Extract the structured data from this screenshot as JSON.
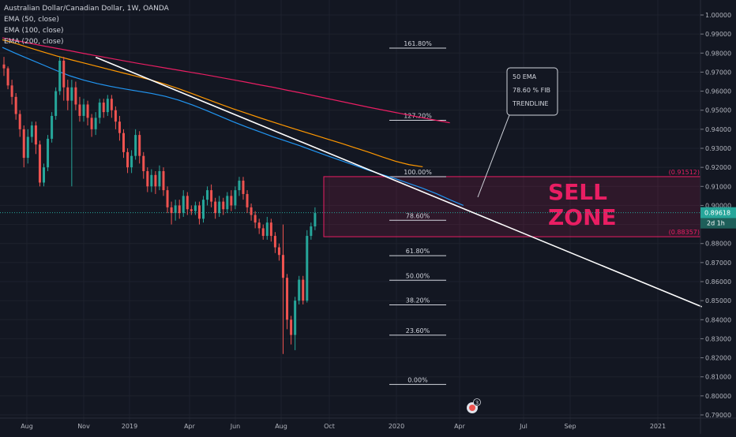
{
  "chart_data": {
    "type": "candlestick",
    "legend_lines": [
      "Australian Dollar/Canadian Dollar, 1W, OANDA",
      "EMA (50, close)",
      "EMA (100, close)",
      "EMA (200, close)"
    ],
    "y_ticks": [
      "1.00000",
      "0.99000",
      "0.98000",
      "0.97000",
      "0.96000",
      "0.95000",
      "0.94000",
      "0.93000",
      "0.92000",
      "0.91000",
      "0.90000",
      "0.89000",
      "0.88000",
      "0.87000",
      "0.86000",
      "0.85000",
      "0.84000",
      "0.83000",
      "0.82000",
      "0.81000",
      "0.80000",
      "0.79000"
    ],
    "ylim": [
      0.79,
      1.0
    ],
    "x_ticks": [
      "Aug",
      "Nov",
      "2019",
      "Apr",
      "Jun",
      "Aug",
      "Oct",
      "2020",
      "Apr",
      "Jul",
      "Sep",
      "2021"
    ],
    "price_label": "0.89618",
    "countdown_label": "2d 1h",
    "price_value": 0.89618,
    "fib_levels": [
      {
        "label": "161.80%",
        "value": 0.9826
      },
      {
        "label": "127.20%",
        "value": 0.9447
      },
      {
        "label": "100.00%",
        "value": 0.9151
      },
      {
        "label": "78.60%",
        "value": 0.8922
      },
      {
        "label": "61.80%",
        "value": 0.8736
      },
      {
        "label": "50.00%",
        "value": 0.8607
      },
      {
        "label": "38.20%",
        "value": 0.8478
      },
      {
        "label": "23.60%",
        "value": 0.8319
      },
      {
        "label": "0.00%",
        "value": 0.806
      }
    ],
    "zone": {
      "top": 0.91512,
      "bottom": 0.88357,
      "top_label": "(0.91512)",
      "bottom_label": "(0.88357)",
      "title_line1": "SELL",
      "title_line2": "ZONE"
    },
    "callout_lines": [
      "50 EMA",
      "78.60 % FIB",
      "TRENDLINE"
    ],
    "badge": "3",
    "trendline": {
      "x1": 23,
      "y1": 0.9778,
      "x2": 175,
      "y2": 0.8468
    },
    "ema_200": [
      0.988,
      0.9866,
      0.9852,
      0.9838,
      0.9825,
      0.9812,
      0.9798,
      0.9785,
      0.9772,
      0.9759,
      0.9746,
      0.9734,
      0.9722,
      0.971,
      0.9698,
      0.9686,
      0.9673,
      0.966,
      0.9647,
      0.9633,
      0.962,
      0.9605,
      0.9591,
      0.9576,
      0.9561,
      0.9546,
      0.9531,
      0.9516,
      0.9502,
      0.9488,
      0.9474,
      0.946,
      0.9447,
      0.9434
    ],
    "ema_100": [
      0.987,
      0.985,
      0.9828,
      0.9806,
      0.9785,
      0.9766,
      0.9748,
      0.973,
      0.9712,
      0.9694,
      0.9676,
      0.9658,
      0.9637,
      0.9613,
      0.9587,
      0.956,
      0.9534,
      0.9508,
      0.9484,
      0.946,
      0.9437,
      0.9414,
      0.9392,
      0.937,
      0.9348,
      0.9326,
      0.9303,
      0.928,
      0.9255,
      0.9232,
      0.9214,
      0.9203
    ],
    "ema_50": [
      0.983,
      0.9798,
      0.9768,
      0.9738,
      0.9708,
      0.968,
      0.9658,
      0.964,
      0.9625,
      0.9612,
      0.96,
      0.9588,
      0.9573,
      0.9553,
      0.9528,
      0.95,
      0.947,
      0.944,
      0.9412,
      0.9386,
      0.936,
      0.9336,
      0.9312,
      0.9286,
      0.926,
      0.9235,
      0.921,
      0.9185,
      0.9162,
      0.914,
      0.9115,
      0.909,
      0.9062,
      0.903,
      0.9
    ],
    "candles": [
      [
        0.974,
        0.972,
        0.978,
        0.968
      ],
      [
        0.972,
        0.963,
        0.973,
        0.961
      ],
      [
        0.963,
        0.957,
        0.966,
        0.953
      ],
      [
        0.957,
        0.948,
        0.959,
        0.945
      ],
      [
        0.948,
        0.94,
        0.95,
        0.936
      ],
      [
        0.94,
        0.925,
        0.942,
        0.92
      ],
      [
        0.925,
        0.936,
        0.94,
        0.922
      ],
      [
        0.936,
        0.942,
        0.944,
        0.933
      ],
      [
        0.942,
        0.932,
        0.944,
        0.927
      ],
      [
        0.932,
        0.912,
        0.934,
        0.91
      ],
      [
        0.912,
        0.92,
        0.922,
        0.91
      ],
      [
        0.92,
        0.935,
        0.937,
        0.918
      ],
      [
        0.935,
        0.947,
        0.949,
        0.933
      ],
      [
        0.947,
        0.96,
        0.962,
        0.945
      ],
      [
        0.96,
        0.976,
        0.978,
        0.958
      ],
      [
        0.976,
        0.962,
        0.978,
        0.955
      ],
      [
        0.962,
        0.955,
        0.966,
        0.95
      ],
      [
        0.955,
        0.962,
        0.966,
        0.91
      ],
      [
        0.962,
        0.953,
        0.965,
        0.95
      ],
      [
        0.953,
        0.947,
        0.957,
        0.944
      ],
      [
        0.947,
        0.953,
        0.956,
        0.944
      ],
      [
        0.953,
        0.946,
        0.955,
        0.942
      ],
      [
        0.946,
        0.94,
        0.948,
        0.936
      ],
      [
        0.94,
        0.946,
        0.949,
        0.937
      ],
      [
        0.946,
        0.954,
        0.956,
        0.943
      ],
      [
        0.954,
        0.949,
        0.956,
        0.946
      ],
      [
        0.949,
        0.956,
        0.958,
        0.947
      ],
      [
        0.956,
        0.95,
        0.958,
        0.946
      ],
      [
        0.95,
        0.944,
        0.952,
        0.94
      ],
      [
        0.944,
        0.938,
        0.947,
        0.934
      ],
      [
        0.938,
        0.928,
        0.94,
        0.925
      ],
      [
        0.928,
        0.92,
        0.93,
        0.917
      ],
      [
        0.92,
        0.926,
        0.929,
        0.917
      ],
      [
        0.926,
        0.937,
        0.94,
        0.924
      ],
      [
        0.937,
        0.926,
        0.939,
        0.922
      ],
      [
        0.926,
        0.918,
        0.928,
        0.914
      ],
      [
        0.918,
        0.91,
        0.92,
        0.907
      ],
      [
        0.91,
        0.916,
        0.919,
        0.907
      ],
      [
        0.916,
        0.91,
        0.918,
        0.906
      ],
      [
        0.91,
        0.918,
        0.921,
        0.908
      ],
      [
        0.918,
        0.908,
        0.92,
        0.905
      ],
      [
        0.908,
        0.899,
        0.91,
        0.896
      ],
      [
        0.899,
        0.896,
        0.902,
        0.89
      ],
      [
        0.896,
        0.9,
        0.903,
        0.892
      ],
      [
        0.9,
        0.896,
        0.903,
        0.893
      ],
      [
        0.896,
        0.905,
        0.908,
        0.894
      ],
      [
        0.905,
        0.898,
        0.907,
        0.895
      ],
      [
        0.898,
        0.897,
        0.9,
        0.895
      ],
      [
        0.897,
        0.9,
        0.902,
        0.895
      ],
      [
        0.9,
        0.893,
        0.902,
        0.89
      ],
      [
        0.893,
        0.903,
        0.905,
        0.891
      ],
      [
        0.903,
        0.908,
        0.91,
        0.9
      ],
      [
        0.908,
        0.902,
        0.911,
        0.899
      ],
      [
        0.902,
        0.896,
        0.904,
        0.893
      ],
      [
        0.896,
        0.902,
        0.905,
        0.894
      ],
      [
        0.902,
        0.898,
        0.904,
        0.895
      ],
      [
        0.898,
        0.905,
        0.907,
        0.896
      ],
      [
        0.905,
        0.9,
        0.908,
        0.897
      ],
      [
        0.9,
        0.908,
        0.91,
        0.898
      ],
      [
        0.908,
        0.913,
        0.915,
        0.905
      ],
      [
        0.913,
        0.906,
        0.915,
        0.903
      ],
      [
        0.906,
        0.899,
        0.908,
        0.896
      ],
      [
        0.899,
        0.895,
        0.901,
        0.892
      ],
      [
        0.895,
        0.891,
        0.897,
        0.888
      ],
      [
        0.891,
        0.888,
        0.893,
        0.885
      ],
      [
        0.888,
        0.884,
        0.89,
        0.882
      ],
      [
        0.884,
        0.891,
        0.894,
        0.882
      ],
      [
        0.891,
        0.884,
        0.893,
        0.881
      ],
      [
        0.884,
        0.878,
        0.886,
        0.875
      ],
      [
        0.878,
        0.874,
        0.88,
        0.871
      ],
      [
        0.874,
        0.862,
        0.89,
        0.822
      ],
      [
        0.862,
        0.84,
        0.864,
        0.835
      ],
      [
        0.84,
        0.832,
        0.842,
        0.827
      ],
      [
        0.832,
        0.85,
        0.852,
        0.824
      ],
      [
        0.85,
        0.861,
        0.863,
        0.848
      ],
      [
        0.861,
        0.85,
        0.863,
        0.848
      ],
      [
        0.85,
        0.884,
        0.887,
        0.849
      ],
      [
        0.884,
        0.889,
        0.891,
        0.882
      ],
      [
        0.889,
        0.896,
        0.899,
        0.887
      ]
    ]
  }
}
